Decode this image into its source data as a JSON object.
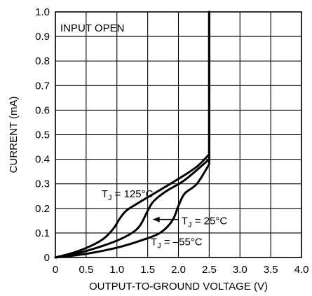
{
  "chart_data": {
    "type": "line",
    "title": "",
    "xlabel": "OUTPUT-TO-GROUND VOLTAGE (V)",
    "ylabel": "CURRENT (mA)",
    "xlim": [
      0,
      4.0
    ],
    "ylim": [
      0,
      1.0
    ],
    "x_ticks": [
      "0",
      "0.5",
      "1.0",
      "1.5",
      "2.0",
      "2.5",
      "3.0",
      "3.5",
      "4.0"
    ],
    "y_ticks": [
      "0",
      "0.1",
      "0.2",
      "0.3",
      "0.4",
      "0.5",
      "0.6",
      "0.7",
      "0.8",
      "0.9",
      "1.0"
    ],
    "grid": true,
    "annotations": {
      "condition": "INPUT OPEN"
    },
    "series": [
      {
        "name": "TJ = 125°C",
        "label_main": "T",
        "label_sub": "J",
        "label_rest": " = 125°C",
        "points": [
          [
            0,
            0
          ],
          [
            0.3,
            0.02
          ],
          [
            0.6,
            0.05
          ],
          [
            0.8,
            0.08
          ],
          [
            0.95,
            0.12
          ],
          [
            1.05,
            0.16
          ],
          [
            1.15,
            0.19
          ],
          [
            1.3,
            0.215
          ],
          [
            1.6,
            0.26
          ],
          [
            2.0,
            0.32
          ],
          [
            2.3,
            0.37
          ],
          [
            2.5,
            0.42
          ],
          [
            2.5,
            1.0
          ]
        ]
      },
      {
        "name": "TJ = 25°C",
        "label_main": "T",
        "label_sub": "J",
        "label_rest": " = 25°C",
        "points": [
          [
            0,
            0
          ],
          [
            0.4,
            0.02
          ],
          [
            0.8,
            0.05
          ],
          [
            1.1,
            0.08
          ],
          [
            1.3,
            0.11
          ],
          [
            1.4,
            0.14
          ],
          [
            1.5,
            0.19
          ],
          [
            1.6,
            0.23
          ],
          [
            1.8,
            0.27
          ],
          [
            2.1,
            0.315
          ],
          [
            2.5,
            0.4
          ],
          [
            2.5,
            1.0
          ]
        ]
      },
      {
        "name": "TJ = –55°C",
        "label_main": "T",
        "label_sub": "J",
        "label_rest": " = –55°C",
        "points": [
          [
            0,
            0
          ],
          [
            0.5,
            0.015
          ],
          [
            1.0,
            0.04
          ],
          [
            1.4,
            0.07
          ],
          [
            1.7,
            0.1
          ],
          [
            1.9,
            0.15
          ],
          [
            2.0,
            0.21
          ],
          [
            2.1,
            0.26
          ],
          [
            2.3,
            0.3
          ],
          [
            2.5,
            0.38
          ],
          [
            2.5,
            1.0
          ]
        ]
      }
    ]
  }
}
